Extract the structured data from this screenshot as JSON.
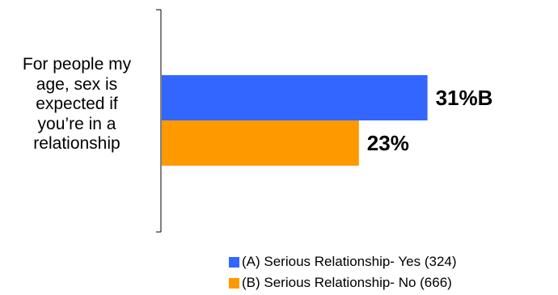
{
  "chart_data": {
    "type": "bar",
    "orientation": "horizontal",
    "categories": [
      "For people my age, sex is expected if you’re in a relationship"
    ],
    "series": [
      {
        "name": "(A) Serious Relationship- Yes (324)",
        "values": [
          31
        ],
        "data_label": "31%B",
        "color": "#3366ff"
      },
      {
        "name": "(B) Serious Relationship- No (666)",
        "values": [
          23
        ],
        "data_label": "23%",
        "color": "#ff9900"
      }
    ],
    "title": "",
    "xlabel": "",
    "ylabel": "",
    "xlim": [
      0,
      50
    ],
    "grid": false,
    "legend_position": "bottom-right"
  }
}
